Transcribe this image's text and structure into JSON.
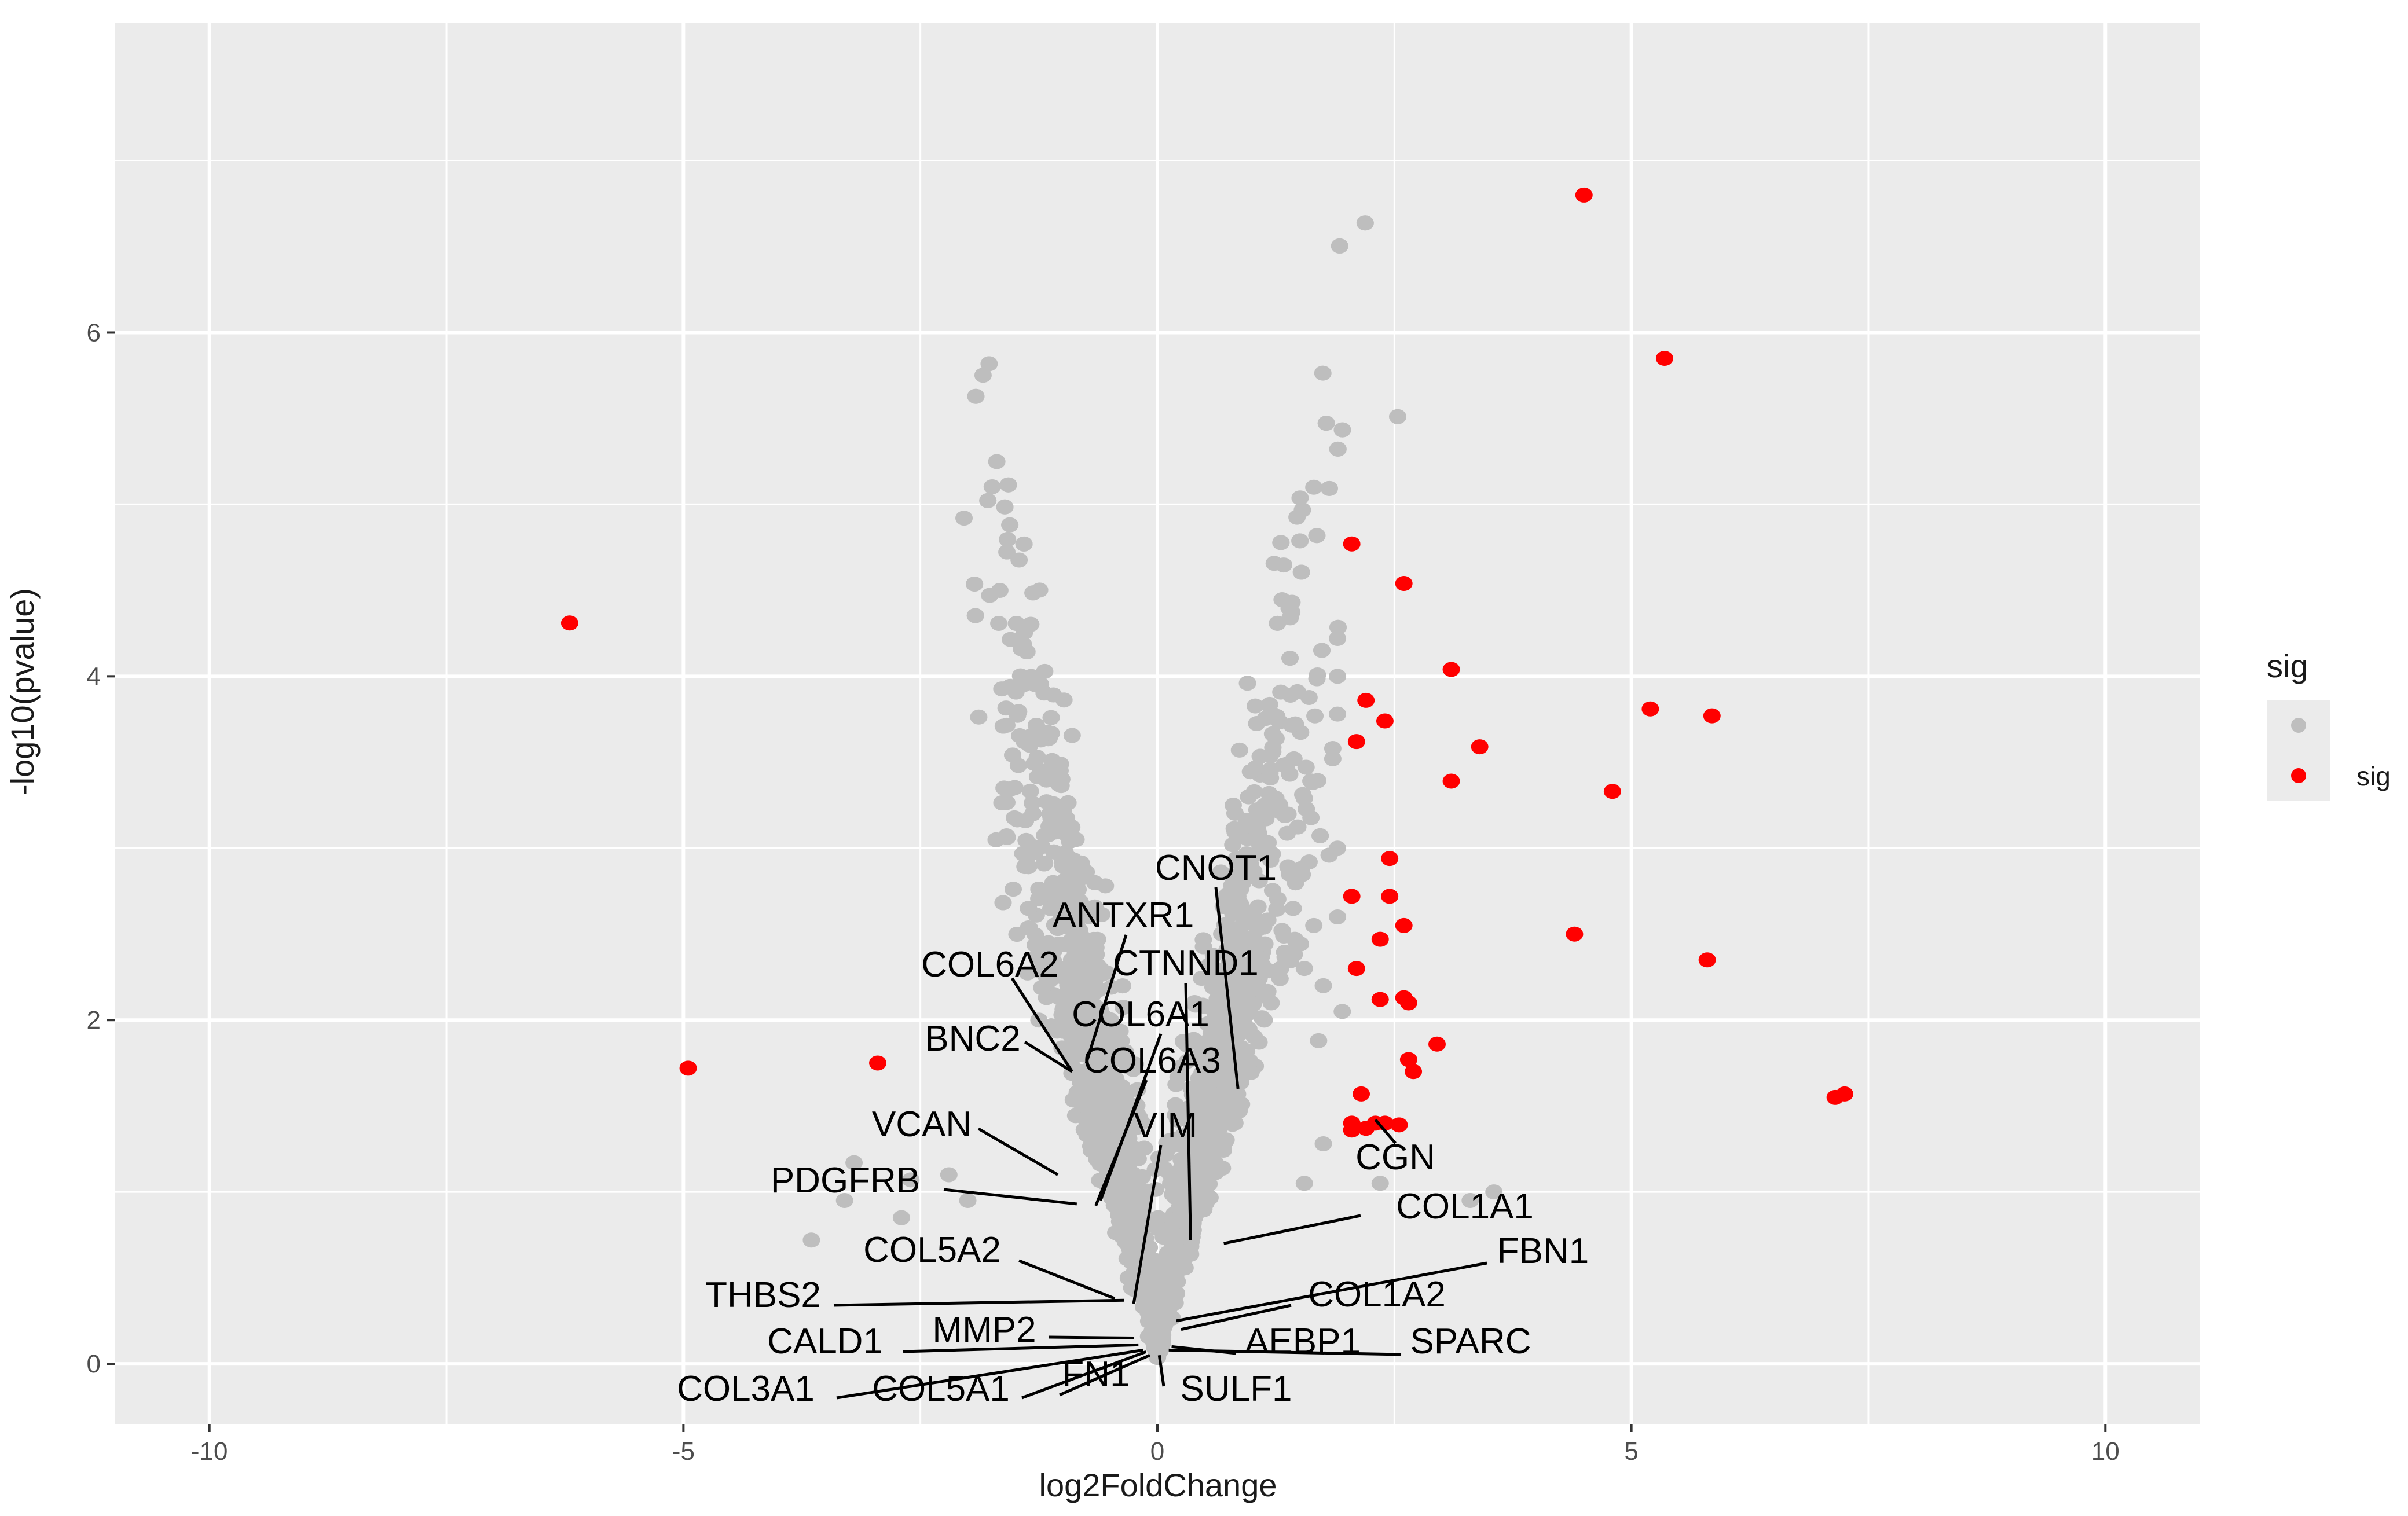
{
  "chart_data": {
    "type": "scatter",
    "xlabel": "log2FoldChange",
    "ylabel": "-log10(pvalue)",
    "xlim": [
      -11,
      11
    ],
    "ylim": [
      -0.35,
      7.8
    ],
    "x_ticks": [
      -10,
      -5,
      0,
      5,
      10
    ],
    "x_tick_labels": [
      "-10",
      "-5",
      "0",
      "5",
      "10"
    ],
    "y_ticks": [
      0,
      2,
      4,
      6
    ],
    "y_tick_labels": [
      "0",
      "2",
      "4",
      "6"
    ],
    "grid": true,
    "legend": {
      "title": "sig",
      "position": "right",
      "entries": [
        {
          "label": "",
          "color": "#bebebe"
        },
        {
          "label": "sig",
          "color": "#ff0000"
        }
      ]
    },
    "colors": {
      "panel": "#ebebeb",
      "grid": "#ffffff",
      "nonsig": "#bebebe",
      "sig": "#ff0000"
    },
    "series": [
      {
        "name": "sig",
        "color": "#ff0000",
        "points": [
          [
            4.5,
            6.8
          ],
          [
            5.35,
            5.85
          ],
          [
            2.05,
            4.77
          ],
          [
            2.6,
            4.54
          ],
          [
            3.1,
            4.04
          ],
          [
            -6.2,
            4.31
          ],
          [
            2.2,
            3.86
          ],
          [
            2.4,
            3.74
          ],
          [
            5.2,
            3.81
          ],
          [
            5.85,
            3.77
          ],
          [
            2.1,
            3.62
          ],
          [
            3.4,
            3.59
          ],
          [
            3.1,
            3.39
          ],
          [
            4.8,
            3.33
          ],
          [
            2.45,
            2.94
          ],
          [
            2.05,
            2.72
          ],
          [
            2.45,
            2.72
          ],
          [
            2.6,
            2.55
          ],
          [
            2.35,
            2.47
          ],
          [
            4.4,
            2.5
          ],
          [
            2.1,
            2.3
          ],
          [
            5.8,
            2.35
          ],
          [
            2.35,
            2.12
          ],
          [
            2.6,
            2.13
          ],
          [
            2.65,
            2.1
          ],
          [
            2.95,
            1.86
          ],
          [
            2.65,
            1.77
          ],
          [
            2.7,
            1.7
          ],
          [
            -4.95,
            1.72
          ],
          [
            -2.95,
            1.75
          ],
          [
            2.15,
            1.57
          ],
          [
            7.15,
            1.55
          ],
          [
            7.25,
            1.57
          ],
          [
            2.05,
            1.4
          ],
          [
            2.05,
            1.36
          ],
          [
            2.3,
            1.4
          ],
          [
            2.4,
            1.4
          ],
          [
            2.55,
            1.39
          ],
          [
            2.2,
            1.37
          ]
        ]
      },
      {
        "color": "#bebebe",
        "points": [
          [
            1.65,
            5.1
          ],
          [
            1.4,
            4.34
          ],
          [
            1.9,
            4.22
          ],
          [
            1.9,
            4.0
          ],
          [
            0.95,
            3.96
          ],
          [
            1.9,
            3.78
          ],
          [
            1.85,
            3.58
          ],
          [
            1.85,
            3.52
          ],
          [
            1.25,
            3.29
          ],
          [
            1.55,
            3.29
          ],
          [
            0.8,
            3.25
          ],
          [
            1.9,
            3.0
          ],
          [
            1.6,
            2.92
          ],
          [
            1.5,
            2.87
          ],
          [
            -1.1,
            2.8
          ],
          [
            -1.05,
            2.72
          ],
          [
            1.65,
            2.55
          ],
          [
            1.9,
            2.6
          ],
          [
            1.45,
            2.47
          ],
          [
            -1.15,
            2.45
          ],
          [
            1.55,
            2.3
          ],
          [
            1.75,
            2.2
          ],
          [
            1.3,
            2.3
          ],
          [
            1.2,
            2.1
          ],
          [
            1.95,
            2.05
          ],
          [
            -1.25,
            2.0
          ],
          [
            -1.0,
            1.95
          ],
          [
            1.7,
            1.88
          ],
          [
            -3.2,
            1.17
          ],
          [
            -3.3,
            0.95
          ],
          [
            -3.65,
            0.72
          ],
          [
            -2.6,
            1.07
          ],
          [
            -2.7,
            0.85
          ],
          [
            -2.2,
            1.1
          ],
          [
            -2.0,
            0.95
          ],
          [
            3.55,
            1.0
          ],
          [
            3.3,
            0.95
          ],
          [
            1.75,
            1.28
          ],
          [
            1.55,
            1.05
          ],
          [
            2.35,
            1.05
          ]
        ]
      }
    ],
    "gene_labels": [
      {
        "text": "CNOT1",
        "point": [
          0.85,
          1.6
        ]
      },
      {
        "text": "ANTXR1",
        "point": [
          -0.75,
          1.75
        ]
      },
      {
        "text": "COL6A2",
        "point": [
          -0.9,
          1.7
        ]
      },
      {
        "text": "CTNND1",
        "point": [
          0.35,
          0.72
        ]
      },
      {
        "text": "COL6A1",
        "point": [
          -0.6,
          0.95
        ]
      },
      {
        "text": "BNC2",
        "point": [
          -0.9,
          1.7
        ]
      },
      {
        "text": "COL6A3",
        "point": [
          -0.65,
          0.92
        ]
      },
      {
        "text": "VIM",
        "point": [
          -0.25,
          0.35
        ]
      },
      {
        "text": "VCAN",
        "point": [
          -1.05,
          1.1
        ]
      },
      {
        "text": "PDGFRB",
        "point": [
          -0.85,
          0.93
        ]
      },
      {
        "text": "CGN",
        "point": [
          2.3,
          1.42
        ]
      },
      {
        "text": "COL1A1",
        "point": [
          0.7,
          0.7
        ]
      },
      {
        "text": "COL5A2",
        "point": [
          -0.45,
          0.38
        ]
      },
      {
        "text": "FBN1",
        "point": [
          0.2,
          0.25
        ]
      },
      {
        "text": "THBS2",
        "point": [
          -0.35,
          0.37
        ]
      },
      {
        "text": "COL1A2",
        "point": [
          0.25,
          0.2
        ]
      },
      {
        "text": "MMP2",
        "point": [
          -0.25,
          0.15
        ]
      },
      {
        "text": "CALD1",
        "point": [
          -0.2,
          0.11
        ]
      },
      {
        "text": "AEBP1",
        "point": [
          0.15,
          0.1
        ]
      },
      {
        "text": "SPARC",
        "point": [
          0.12,
          0.08
        ]
      },
      {
        "text": "COL3A1",
        "point": [
          -0.15,
          0.08
        ]
      },
      {
        "text": "COL5A1",
        "point": [
          -0.12,
          0.07
        ]
      },
      {
        "text": "FN1",
        "point": [
          -0.08,
          0.05
        ]
      },
      {
        "text": "SULF1",
        "point": [
          0.02,
          0.05
        ]
      }
    ]
  }
}
